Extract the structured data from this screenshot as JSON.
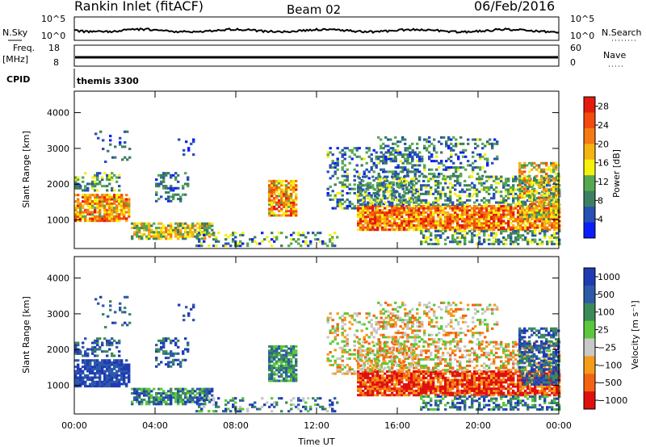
{
  "header": {
    "title": "Rankin Inlet (fitACF)",
    "beam": "Beam 02",
    "date": "06/Feb/2016"
  },
  "strip_panels": {
    "nsky_label": "N.Sky",
    "nsky_ticks": [
      "10^5",
      "10^0"
    ],
    "nsearch_label": "N.Search",
    "nsearch_ticks": [
      "10^5",
      "10^0"
    ],
    "freq_label": "Freq.",
    "freq_unit": "[MHz]",
    "freq_ticks": [
      "18",
      "8"
    ],
    "nave_label": "Nave",
    "nave_ticks": [
      "60",
      "0"
    ],
    "cpid_label": "CPID",
    "cpid_value": "themis 3300"
  },
  "colors": {
    "power_scale": [
      "#0a1dff",
      "#2850b4",
      "#3d7f62",
      "#56a850",
      "#f4f20d",
      "#f4b412",
      "#f47a14",
      "#f44a0e",
      "#e31a0c"
    ],
    "velocity_scale": [
      "#e01010",
      "#f26414",
      "#f49c1a",
      "#c8c8c8",
      "#5ac83c",
      "#3c8a5a",
      "#2d5aa8",
      "#203ab4"
    ]
  },
  "chart_data": [
    {
      "type": "heatmap",
      "name": "power",
      "xlabel": "",
      "ylabel": "Slant Range [km]",
      "xlim": [
        "00:00",
        "24:00"
      ],
      "ylim": [
        200,
        4600
      ],
      "yticks": [
        "1000",
        "2000",
        "3000",
        "4000"
      ],
      "colorbar_label": "Power [dB]",
      "colorbar_ticks": [
        "4",
        "8",
        "12",
        "16",
        "20",
        "24",
        "28"
      ],
      "clim": [
        0,
        30
      ]
    },
    {
      "type": "heatmap",
      "name": "velocity",
      "xlabel": "Time UT",
      "ylabel": "Slant Range [km]",
      "xlim": [
        "00:00",
        "24:00"
      ],
      "ylim": [
        200,
        4600
      ],
      "xticks": [
        "00:00",
        "04:00",
        "08:00",
        "12:00",
        "16:00",
        "20:00",
        "00:00"
      ],
      "yticks": [
        "1000",
        "2000",
        "3000",
        "4000"
      ],
      "colorbar_label": "Velocity [m s⁻¹]",
      "colorbar_ticks": [
        "1000",
        "500",
        "100",
        "25",
        "−25",
        "−100",
        "−500",
        "−1000"
      ]
    }
  ]
}
